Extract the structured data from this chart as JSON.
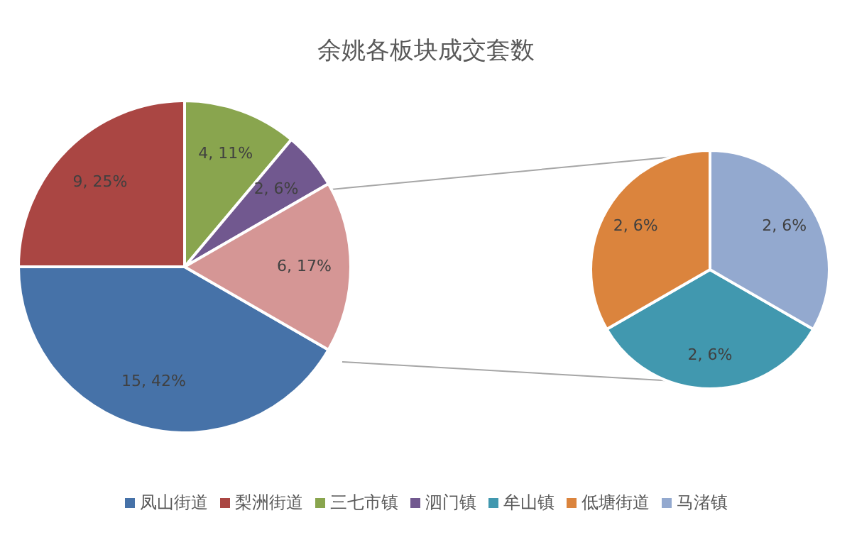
{
  "chart_data": [
    {
      "type": "pie",
      "title": "余姚各板块成交套数",
      "categories": [
        "凤山街道",
        "梨洲街道",
        "三七市镇",
        "泗门镇",
        null
      ],
      "values": [
        15,
        9,
        4,
        2,
        6
      ],
      "colors": [
        "#4672a8",
        "#aa4643",
        "#89a54e",
        "#71588f",
        "#d59695"
      ],
      "value_labels": [
        "15, 42%",
        "9, 25%",
        "4, 11%",
        "2, 6%",
        "6, 17%"
      ],
      "legend": "bottom"
    },
    {
      "type": "pie",
      "categories": [
        "牟山镇",
        "低塘街道",
        "马渚镇"
      ],
      "values": [
        2,
        2,
        2
      ],
      "colors": [
        "#4198af",
        "#db843d",
        "#93a9cf"
      ],
      "value_labels": [
        "2, 6%",
        "2, 6%",
        "2, 6%"
      ],
      "legend": "bottom"
    }
  ]
}
